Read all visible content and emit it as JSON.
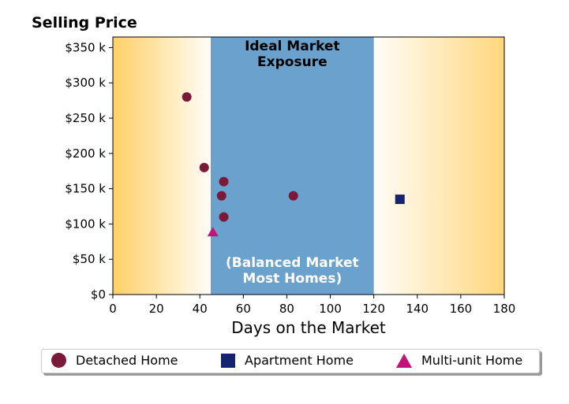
{
  "chart_data": {
    "type": "scatter",
    "title": "Selling Price",
    "xlabel": "Days on the Market",
    "ylabel": "",
    "xlim": [
      0,
      180
    ],
    "ylim": [
      0,
      365000
    ],
    "x_ticks": [
      0,
      20,
      40,
      60,
      80,
      100,
      120,
      140,
      160,
      180
    ],
    "x_tick_labels": [
      "0",
      "20",
      "40",
      "60",
      "80",
      "100",
      "120",
      "140",
      "160",
      "180"
    ],
    "y_ticks": [
      0,
      50000,
      100000,
      150000,
      200000,
      250000,
      300000,
      350000
    ],
    "y_tick_labels": [
      "$0",
      "$50 k",
      "$100 k",
      "$150 k",
      "$200 k",
      "$250 k",
      "$300 k",
      "$350 k"
    ],
    "grid": false,
    "legend_position": "bottom-outside",
    "band": {
      "x_start": 45,
      "x_end": 120,
      "color": "#6aa1cd",
      "label_top_lines": [
        "Ideal Market",
        "Exposure"
      ],
      "label_bottom_lines": [
        "(Balanced Market",
        "Most Homes)"
      ]
    },
    "background_gradient_color": "#ffd066",
    "series": [
      {
        "name": "Detached Home",
        "marker": "circle",
        "color": "#7a1a3b",
        "points": [
          {
            "x": 34,
            "y": 280000
          },
          {
            "x": 42,
            "y": 180000
          },
          {
            "x": 51,
            "y": 160000
          },
          {
            "x": 50,
            "y": 140000
          },
          {
            "x": 51,
            "y": 110000
          },
          {
            "x": 83,
            "y": 140000
          }
        ]
      },
      {
        "name": "Apartment Home",
        "marker": "square",
        "color": "#162370",
        "points": [
          {
            "x": 132,
            "y": 135000
          }
        ]
      },
      {
        "name": "Multi-unit Home",
        "marker": "triangle",
        "color": "#c4127a",
        "points": [
          {
            "x": 46,
            "y": 88000
          }
        ]
      }
    ]
  }
}
